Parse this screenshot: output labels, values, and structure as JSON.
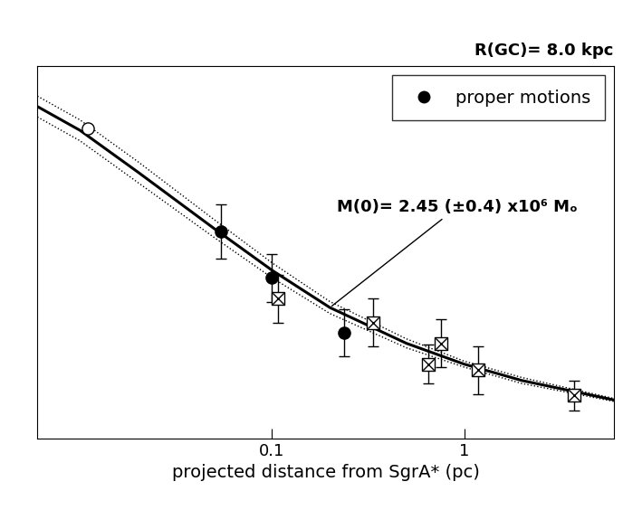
{
  "chart_data": {
    "type": "scatter",
    "x_label": "projected distance from SgrA* (pc)",
    "corner_text": "R(GC)= 8.0 kpc",
    "annotation": "M(0)= 2.45 (±0.4) x10⁶ Mₒ",
    "log": "x",
    "xlim": [
      0.006,
      6
    ],
    "xticks": [
      0.1,
      1
    ],
    "ylim": [
      0,
      250
    ],
    "yticks": [],
    "tick_labels": "x",
    "legend": "upper right",
    "series": [
      {
        "name": "proper motions",
        "type": "scatter",
        "marker": "circle",
        "color": "#000000",
        "x": [
          0.054,
          0.1,
          0.238
        ],
        "values": [
          139,
          108,
          71
        ],
        "errors": [
          18,
          16,
          16
        ]
      },
      {
        "type": "scatter",
        "marker": "boxed_x",
        "color": "#000000",
        "x": [
          0.107,
          0.334,
          0.65,
          0.755,
          1.18,
          3.73
        ],
        "values": [
          94,
          78,
          50,
          64,
          46,
          29
        ],
        "errors": [
          16,
          16,
          13,
          16,
          16,
          10
        ]
      },
      {
        "type": "scatter",
        "marker": "open_circle",
        "color": "#000000",
        "x": [
          0.011
        ],
        "values": [
          208
        ]
      },
      {
        "type": "line",
        "line_style": "solid",
        "color": "#000000",
        "x": [
          0.006,
          0.01,
          0.02,
          0.05,
          0.1,
          0.2,
          0.5,
          1,
          2,
          6
        ],
        "values": [
          223,
          207,
          179,
          141,
          113,
          88,
          64,
          50,
          39,
          26
        ]
      },
      {
        "type": "line",
        "line_style": "dotted",
        "color": "#000000",
        "x": [
          0.006,
          0.01,
          0.02,
          0.05,
          0.1,
          0.2,
          0.5,
          1,
          2,
          6
        ],
        "values": [
          230,
          214,
          186,
          147,
          118,
          92,
          67,
          52,
          41,
          27
        ]
      },
      {
        "type": "line",
        "line_style": "dotted",
        "color": "#000000",
        "x": [
          0.006,
          0.01,
          0.02,
          0.05,
          0.1,
          0.2,
          0.5,
          1,
          2,
          6
        ],
        "values": [
          216,
          200,
          172,
          135,
          108,
          84,
          61,
          48,
          37,
          25
        ]
      }
    ]
  }
}
